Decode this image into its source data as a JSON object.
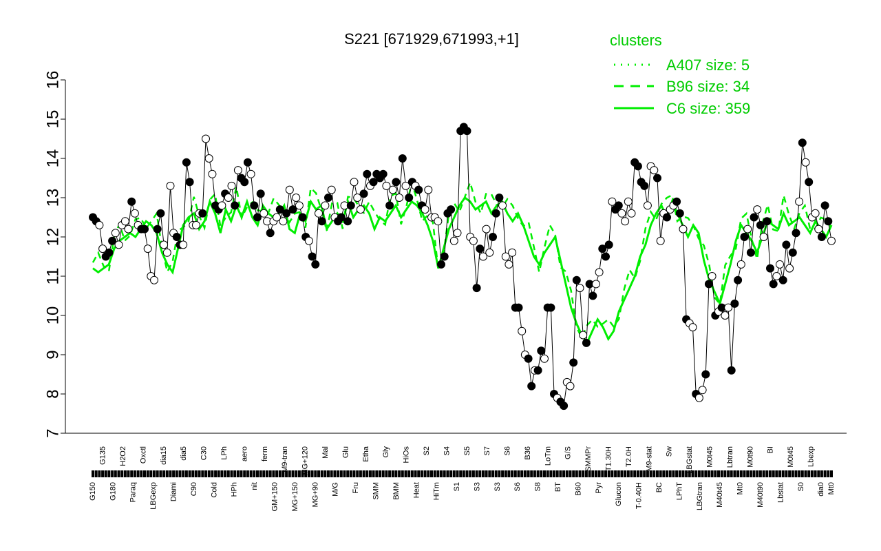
{
  "chart_data": {
    "type": "line",
    "title": "S221 [671929,671993,+1]",
    "xlabel": "",
    "ylabel": "",
    "ylim": [
      7,
      16
    ],
    "y_ticks": [
      7,
      8,
      9,
      10,
      11,
      12,
      13,
      14,
      15,
      16
    ],
    "grid": false,
    "colors": {
      "lines": "#00ee00",
      "legend_text": "#00cc00",
      "points_filled": "#000000",
      "points_open": "#ffffff"
    },
    "legend": {
      "title": "clusters",
      "placement": "top-right",
      "entries": [
        {
          "label": "A407 size: 5",
          "style": "dotted"
        },
        {
          "label": "B96 size: 34",
          "style": "dashed"
        },
        {
          "label": "C6 size: 359",
          "style": "solid"
        }
      ]
    },
    "x_labels_top": [
      "G135",
      "H2O2",
      "Oxctl",
      "dia15",
      "dia5",
      "C30",
      "LPh",
      "aero",
      "ferm",
      "M9-tran",
      "MG+120",
      "Mal",
      "Glu",
      "Etha",
      "Gly",
      "HiOs",
      "S2",
      "S4",
      "S5",
      "S7",
      "S6",
      "B36",
      "LoTm",
      "G/S",
      "SMMPr",
      "T1.30H",
      "T2.0H",
      "M9-stat",
      "Sw",
      "LBGstat",
      "M0t45",
      "Lbtran",
      "M0t90",
      "BI",
      "M0t45",
      "Lbexp"
    ],
    "x_labels_bottom": [
      "G150",
      "G180",
      "Paraq",
      "LBGexp",
      "Diami",
      "C90",
      "Cold",
      "HPh",
      "nit",
      "GM+150",
      "MG+150",
      "MG+90",
      "M/G",
      "Fru",
      "SMM",
      "BMM",
      "Heat",
      "HiTm",
      "S1",
      "S3",
      "S3",
      "S6",
      "S8",
      "BT",
      "B60",
      "Pyr",
      "Glucon",
      "T-0.40H",
      "BC",
      "LPhT",
      "LBGtran",
      "M40t45",
      "Mt0",
      "M40t90",
      "Lbstat",
      "S0",
      "dia0",
      "Mt0"
    ],
    "points": [
      12.5,
      12.4,
      12.3,
      11.7,
      11.5,
      11.6,
      11.9,
      12.1,
      11.8,
      12.3,
      12.4,
      12.2,
      12.9,
      12.6,
      12.3,
      12.2,
      12.2,
      11.7,
      11.0,
      10.9,
      12.2,
      12.6,
      11.8,
      11.6,
      13.3,
      12.1,
      12.0,
      11.8,
      11.8,
      13.9,
      13.4,
      12.3,
      12.3,
      12.6,
      12.6,
      14.5,
      14.0,
      13.6,
      12.8,
      12.7,
      12.8,
      13.1,
      13.0,
      13.3,
      12.8,
      13.7,
      13.5,
      13.4,
      13.9,
      13.6,
      12.8,
      12.5,
      13.1,
      12.6,
      12.4,
      12.1,
      12.4,
      12.5,
      12.7,
      12.4,
      12.6,
      13.2,
      12.7,
      13.0,
      12.8,
      12.5,
      12.0,
      11.9,
      11.5,
      11.3,
      12.6,
      12.4,
      12.8,
      13.0,
      13.2,
      12.5,
      12.4,
      12.5,
      12.8,
      12.4,
      12.8,
      13.4,
      13.0,
      12.7,
      13.1,
      13.6,
      13.3,
      13.4,
      13.6,
      13.5,
      13.6,
      13.3,
      12.8,
      13.2,
      13.4,
      13.0,
      14.0,
      13.3,
      13.0,
      13.4,
      13.3,
      13.2,
      12.8,
      12.7,
      13.2,
      12.5,
      12.5,
      12.4,
      11.3,
      11.5,
      12.6,
      12.7,
      11.9,
      12.1,
      14.7,
      14.8,
      14.7,
      12.0,
      11.9,
      10.7,
      11.7,
      11.5,
      12.2,
      11.6,
      12.0,
      12.6,
      13.0,
      12.8,
      11.5,
      11.3,
      11.6,
      10.2,
      10.2,
      9.6,
      9.0,
      8.9,
      8.2,
      8.6,
      8.6,
      9.1,
      8.9,
      10.2,
      10.2,
      8.0,
      7.9,
      7.8,
      7.7,
      8.3,
      8.2,
      8.8,
      10.9,
      10.7,
      9.5,
      9.3,
      10.8,
      10.5,
      10.8,
      11.1,
      11.7,
      11.5,
      11.8,
      12.9,
      12.7,
      12.8,
      12.6,
      12.4,
      12.9,
      12.6,
      13.9,
      13.8,
      13.4,
      13.3,
      12.8,
      13.8,
      13.7,
      13.5,
      11.9,
      12.6,
      12.5,
      12.7,
      12.8,
      12.9,
      12.6,
      12.2,
      9.9,
      9.8,
      9.7,
      8.0,
      7.9,
      8.1,
      8.5,
      10.8,
      11.0,
      10.0,
      10.1,
      10.2,
      10.0,
      10.2,
      8.6,
      10.3,
      10.9,
      11.3,
      12.0,
      12.2,
      11.6,
      12.5,
      12.7,
      12.3,
      12.0,
      12.4,
      11.2,
      10.8,
      11.0,
      11.3,
      10.9,
      11.8,
      11.2,
      11.6,
      12.1,
      12.9,
      14.4,
      13.9,
      13.4,
      12.5,
      12.6,
      12.2,
      12.0,
      12.8,
      12.4,
      11.9
    ],
    "filled_points": [
      0,
      1,
      4,
      5,
      6,
      12,
      15,
      16,
      20,
      21,
      26,
      27,
      29,
      30,
      34,
      38,
      39,
      41,
      44,
      46,
      47,
      48,
      50,
      51,
      52,
      55,
      58,
      60,
      62,
      65,
      66,
      68,
      69,
      71,
      73,
      76,
      77,
      79,
      80,
      84,
      85,
      87,
      88,
      89,
      90,
      92,
      94,
      96,
      98,
      99,
      101,
      102,
      108,
      109,
      110,
      111,
      114,
      115,
      116,
      119,
      120,
      124,
      125,
      126,
      131,
      132,
      135,
      136,
      138,
      139,
      141,
      142,
      143,
      145,
      146,
      149,
      150,
      153,
      154,
      155,
      158,
      159,
      160,
      162,
      163,
      168,
      169,
      170,
      171,
      175,
      178,
      181,
      182,
      184,
      187,
      190,
      191,
      193,
      195,
      198,
      199,
      200,
      202,
      204,
      205,
      207,
      209,
      210,
      211,
      214,
      215,
      217,
      218,
      220,
      222,
      226,
      227,
      228,
      230,
      232,
      233,
      235
    ],
    "line_solid": [
      11.2,
      11.1,
      11.2,
      11.3,
      11.7,
      11.9,
      12.0,
      12.1,
      12.0,
      12.2,
      12.4,
      12.3,
      12.1,
      11.6,
      11.3,
      11.1,
      11.7,
      12.3,
      12.5,
      12.6,
      12.2,
      12.4,
      12.9,
      12.6,
      12.1,
      12.7,
      12.4,
      12.8,
      12.5,
      12.9,
      12.5,
      12.3,
      12.8,
      12.6,
      12.5,
      12.6,
      12.8,
      12.2,
      12.1,
      12.6,
      12.4,
      12.9,
      12.7,
      12.8,
      12.2,
      12.4,
      12.6,
      12.4,
      12.9,
      12.5,
      12.7,
      12.8,
      12.6,
      12.2,
      12.5,
      12.4,
      12.6,
      12.8,
      12.5,
      12.7,
      12.9,
      12.8,
      12.6,
      12.3,
      11.9,
      11.2,
      11.7,
      12.2,
      12.5,
      12.8,
      13.0,
      12.9,
      12.7,
      12.8,
      12.9,
      12.6,
      12.8,
      12.9,
      12.6,
      12.4,
      12.6,
      12.3,
      11.9,
      11.5,
      11.3,
      11.6,
      11.8,
      12.0,
      11.4,
      10.8,
      10.2,
      9.8,
      9.5,
      9.3,
      9.6,
      9.9,
      9.7,
      9.4,
      9.6,
      10.1,
      10.4,
      10.7,
      11.0,
      11.5,
      11.8,
      12.3,
      12.6,
      12.8,
      12.5,
      12.9,
      12.6,
      12.3,
      12.0,
      12.3,
      12.1,
      11.4,
      10.9,
      10.6,
      10.3,
      10.8,
      11.3,
      11.9,
      12.3,
      12.1,
      11.9,
      11.6,
      12.0,
      12.4,
      12.3,
      12.2,
      12.6,
      12.3,
      12.4,
      12.5,
      12.3,
      12.1,
      12.4,
      12.2,
      12.0,
      12.3
    ]
  }
}
